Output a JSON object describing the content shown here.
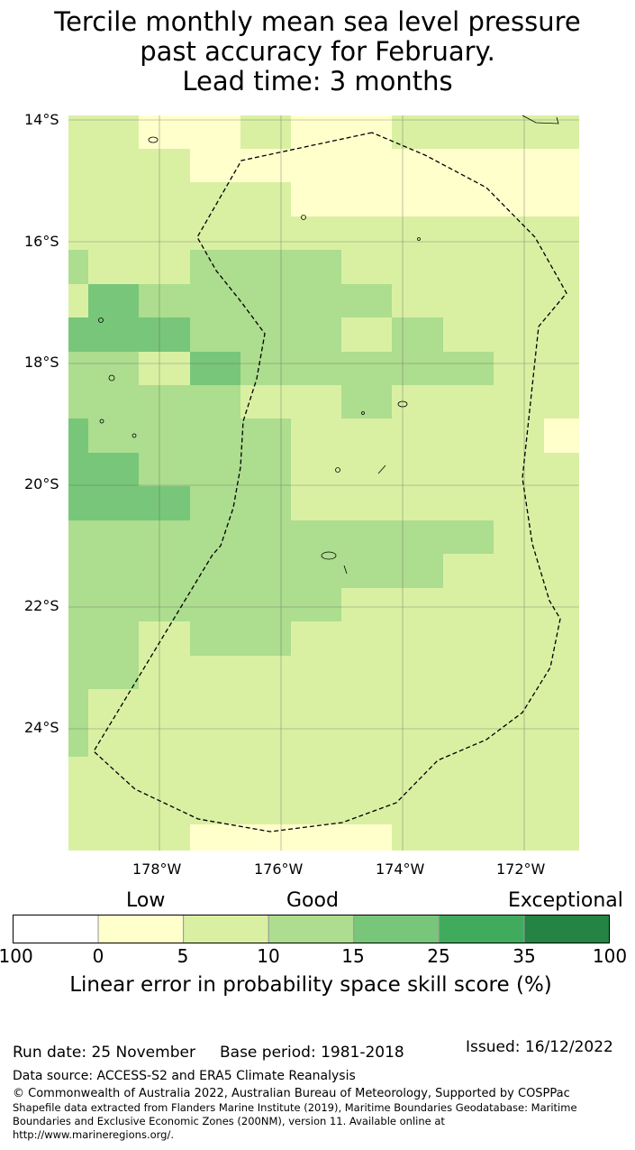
{
  "title": {
    "line1": "Tercile monthly mean sea level pressure",
    "line2": "past accuracy for February.",
    "line3": "Lead time: 3 months"
  },
  "map": {
    "lat_labels": [
      "14°S",
      "16°S",
      "18°S",
      "20°S",
      "22°S",
      "24°S"
    ],
    "lon_labels": [
      "178°W",
      "176°W",
      "174°W",
      "172°W"
    ],
    "colors": {
      "low": "#ffffcc",
      "base": "#d9f0a3",
      "good": "#addd8e",
      "better": "#78c679"
    }
  },
  "colorbar": {
    "categories": [
      "Low",
      "Good",
      "Exceptional"
    ],
    "ticks": [
      "-100",
      "0",
      "5",
      "10",
      "15",
      "25",
      "35",
      "100"
    ],
    "colors": [
      "#ffffff",
      "#ffffcc",
      "#d9f0a3",
      "#addd8e",
      "#78c679",
      "#41ab5d",
      "#238443"
    ],
    "label": "Linear error in probability space skill score (%)"
  },
  "footer": {
    "run_date": "Run date: 25 November",
    "base_period": "Base period: 1981-2018",
    "issued": "Issued: 16/12/2022",
    "data_source": "Data source: ACCESS-S2 and ERA5 Climate Reanalysis",
    "copyright": "© Commonwealth of Australia 2022, Australian Bureau of Meteorology, Supported by COSPPac",
    "shapefile1": "Shapefile data extracted from Flanders Marine Institute (2019), Maritime Boundaries Geodatabase: Maritime",
    "shapefile2": "Boundaries and Exclusive Economic Zones (200NM), version 11. Available online at",
    "shapefile3": "http://www.marineregions.org/."
  }
}
